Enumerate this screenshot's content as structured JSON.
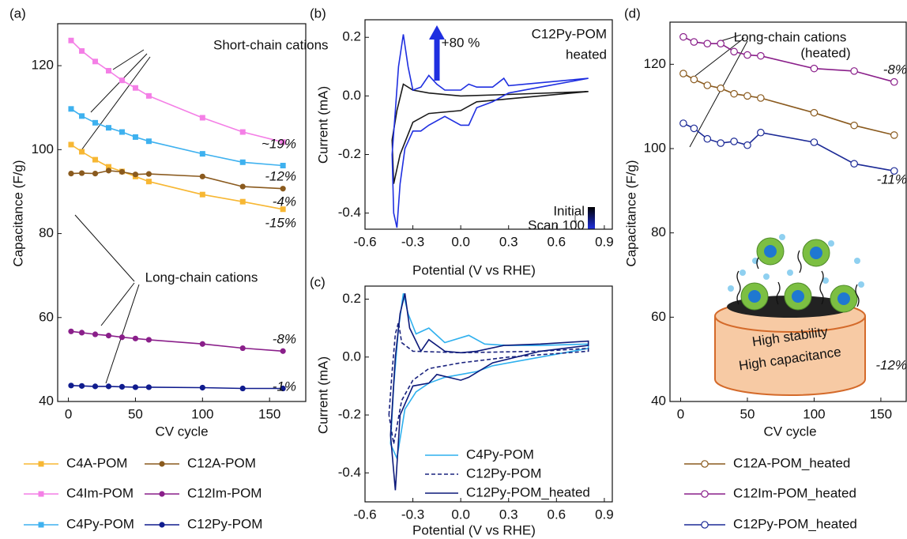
{
  "chart_data": [
    {
      "type": "line",
      "panel": "(a)",
      "x_label": "CV cycle",
      "y_label": "Capacitance (F/g)",
      "x": [
        2,
        10,
        20,
        30,
        40,
        50,
        60,
        100,
        130,
        160
      ],
      "xlim": [
        -8,
        177
      ],
      "xticks": [
        0,
        50,
        100,
        150
      ],
      "ylim": [
        40,
        130
      ],
      "yticks": [
        40,
        60,
        80,
        100,
        120
      ],
      "annotations": [
        "Short-chain cations",
        "Long-chain cations"
      ],
      "series": [
        {
          "name": "C4A-POM",
          "color": "#f7b733",
          "marker": "square",
          "end_label": "-15%",
          "values": [
            101.2,
            99.5,
            97.6,
            95.9,
            94.8,
            93.6,
            92.4,
            89.3,
            87.6,
            85.8
          ]
        },
        {
          "name": "C12A-POM",
          "color": "#8a5a1e",
          "marker": "circle",
          "end_label": "-4%",
          "values": [
            94.3,
            94.4,
            94.3,
            95.0,
            94.7,
            94.1,
            94.2,
            93.6,
            91.2,
            90.7
          ]
        },
        {
          "name": "C4Im-POM",
          "color": "#f47fe6",
          "marker": "square",
          "end_label": "~19%",
          "values": [
            126.0,
            123.5,
            121.0,
            118.8,
            116.5,
            114.7,
            112.8,
            107.6,
            104.2,
            101.8
          ]
        },
        {
          "name": "C12Im-POM",
          "color": "#8a1f8a",
          "marker": "circle",
          "end_label": "-8%",
          "values": [
            56.7,
            56.4,
            56.0,
            55.7,
            55.3,
            55.0,
            54.7,
            53.7,
            52.7,
            52.0
          ]
        },
        {
          "name": "C4Py-POM",
          "color": "#3eb1ef",
          "marker": "square",
          "end_label": "-12%",
          "values": [
            109.7,
            108.0,
            106.4,
            105.2,
            104.2,
            103.0,
            102.0,
            99.0,
            97.0,
            96.2
          ]
        },
        {
          "name": "C12Py-POM",
          "color": "#101c8e",
          "marker": "circle",
          "end_label": "-1%",
          "values": [
            43.8,
            43.7,
            43.6,
            43.6,
            43.5,
            43.4,
            43.4,
            43.3,
            43.1,
            43.1
          ]
        }
      ]
    },
    {
      "type": "line",
      "panel": "(b)",
      "x_label": "Potential (V vs RHE)",
      "y_label": "Current (mA)",
      "xlim": [
        -0.6,
        0.95
      ],
      "xticks": [
        -0.6,
        -0.3,
        {
          "value": 0,
          "label": "0.0"
        },
        0.3,
        0.6,
        0.9
      ],
      "ylim": [
        -0.455,
        0.26
      ],
      "yticks": [
        -0.4,
        -0.2,
        {
          "value": 0,
          "label": "0.0"
        },
        0.2
      ],
      "annotations": [
        "+80 %",
        "C12Py-POM",
        "heated"
      ],
      "series": [
        {
          "name": "Initial",
          "color": "#1a1a1a",
          "x": [
            -0.43,
            -0.4,
            -0.36,
            -0.3,
            -0.2,
            0.0,
            0.3,
            0.8,
            0.3,
            0.1,
            0.0,
            -0.2,
            -0.3,
            -0.38,
            -0.42,
            -0.43
          ],
          "values": [
            -0.15,
            -0.05,
            0.04,
            0.02,
            0.01,
            0.0,
            0.005,
            0.015,
            -0.01,
            -0.02,
            -0.05,
            -0.06,
            -0.09,
            -0.2,
            -0.3,
            -0.15
          ]
        },
        {
          "name": "Scan 100",
          "color": "#1f2fe0",
          "x": [
            -0.43,
            -0.41,
            -0.39,
            -0.36,
            -0.33,
            -0.3,
            -0.25,
            -0.2,
            -0.15,
            -0.1,
            0.0,
            0.05,
            0.1,
            0.2,
            0.27,
            0.3,
            0.5,
            0.8,
            0.5,
            0.3,
            0.2,
            0.1,
            0.05,
            0.0,
            -0.1,
            -0.2,
            -0.25,
            -0.3,
            -0.35,
            -0.38,
            -0.4,
            -0.42,
            -0.43
          ],
          "values": [
            -0.2,
            -0.05,
            0.1,
            0.21,
            0.1,
            0.02,
            0.03,
            0.07,
            0.04,
            0.02,
            0.02,
            0.04,
            0.03,
            0.03,
            0.06,
            0.035,
            0.045,
            0.06,
            0.03,
            0.01,
            -0.02,
            -0.04,
            -0.1,
            -0.1,
            -0.07,
            -0.1,
            -0.12,
            -0.12,
            -0.18,
            -0.3,
            -0.45,
            -0.4,
            -0.2
          ]
        }
      ]
    },
    {
      "type": "line",
      "panel": "(c)",
      "x_label": "Potential (V vs RHE)",
      "y_label": "Current (mA)",
      "xlim": [
        -0.6,
        0.95
      ],
      "xticks": [
        -0.6,
        -0.3,
        {
          "value": 0,
          "label": "0.0"
        },
        0.3,
        0.6,
        0.9
      ],
      "ylim": [
        -0.5,
        0.245
      ],
      "yticks": [
        -0.4,
        -0.2,
        {
          "value": 0,
          "label": "0.0"
        },
        0.2
      ],
      "series": [
        {
          "name": "C4Py-POM",
          "color": "#2fb0ee",
          "dash": false,
          "x": [
            -0.44,
            -0.42,
            -0.39,
            -0.36,
            -0.33,
            -0.28,
            -0.2,
            -0.1,
            0.05,
            0.15,
            0.3,
            0.5,
            0.8,
            0.8,
            0.5,
            0.2,
            0.1,
            0.0,
            -0.1,
            -0.2,
            -0.28,
            -0.35,
            -0.4,
            -0.44
          ],
          "values": [
            -0.3,
            -0.1,
            0.1,
            0.22,
            0.15,
            0.08,
            0.1,
            0.05,
            0.075,
            0.045,
            0.04,
            0.04,
            0.045,
            0.03,
            0.0,
            -0.03,
            -0.05,
            -0.06,
            -0.07,
            -0.09,
            -0.12,
            -0.18,
            -0.35,
            -0.3
          ]
        },
        {
          "name": "C12Py-POM",
          "color": "#1a237e",
          "dash": true,
          "x": [
            -0.45,
            -0.43,
            -0.41,
            -0.39,
            -0.37,
            -0.3,
            0.0,
            0.5,
            0.8,
            0.8,
            0.3,
            0.0,
            -0.2,
            -0.3,
            -0.37,
            -0.42,
            -0.45
          ],
          "values": [
            -0.2,
            -0.05,
            0.08,
            0.12,
            0.05,
            0.02,
            0.015,
            0.02,
            0.03,
            0.02,
            0.0,
            -0.02,
            -0.04,
            -0.08,
            -0.15,
            -0.3,
            -0.2
          ]
        },
        {
          "name": "C12Py-POM_heated",
          "color": "#0d1a7a",
          "dash": false,
          "x": [
            -0.44,
            -0.41,
            -0.38,
            -0.35,
            -0.32,
            -0.25,
            -0.2,
            -0.1,
            0.0,
            0.1,
            0.27,
            0.5,
            0.8,
            0.8,
            0.5,
            0.2,
            0.05,
            0.0,
            -0.15,
            -0.2,
            -0.3,
            -0.38,
            -0.41,
            -0.44
          ],
          "values": [
            -0.27,
            0.0,
            0.15,
            0.22,
            0.1,
            0.02,
            0.06,
            0.02,
            0.015,
            0.02,
            0.04,
            0.045,
            0.055,
            0.04,
            0.02,
            -0.02,
            -0.07,
            -0.08,
            -0.06,
            -0.09,
            -0.1,
            -0.2,
            -0.46,
            -0.27
          ]
        }
      ]
    },
    {
      "type": "line",
      "panel": "(d)",
      "x_label": "CV cycle",
      "y_label": "Capacitance (F/g)",
      "x": [
        2,
        10,
        20,
        30,
        40,
        50,
        60,
        100,
        130,
        160
      ],
      "xlim": [
        -8,
        169
      ],
      "xticks": [
        0,
        50,
        100,
        150
      ],
      "ylim": [
        40,
        130
      ],
      "yticks": [
        40,
        60,
        80,
        100,
        120
      ],
      "annotations": [
        "Long-chain cations",
        "(heated)",
        "High stability",
        "High capacitance"
      ],
      "series": [
        {
          "name": "C12A-POM_heated",
          "color": "#8a5a1e",
          "marker": "open",
          "end_label": "-12%",
          "values": [
            117.8,
            116.4,
            115.0,
            114.3,
            113.0,
            112.5,
            112.0,
            108.5,
            105.5,
            103.2
          ]
        },
        {
          "name": "C12Im-POM_heated",
          "color": "#8a1f8a",
          "marker": "open",
          "end_label": "-8%",
          "values": [
            126.5,
            125.3,
            124.9,
            124.9,
            123.0,
            122.2,
            122.0,
            119.0,
            118.4,
            115.8
          ]
        },
        {
          "name": "C12Py-POM_heated",
          "color": "#1c2a96",
          "marker": "open",
          "end_label": "-11%",
          "values": [
            106.0,
            104.8,
            102.3,
            101.3,
            101.7,
            100.8,
            103.8,
            101.5,
            96.4,
            94.7
          ]
        }
      ]
    }
  ]
}
